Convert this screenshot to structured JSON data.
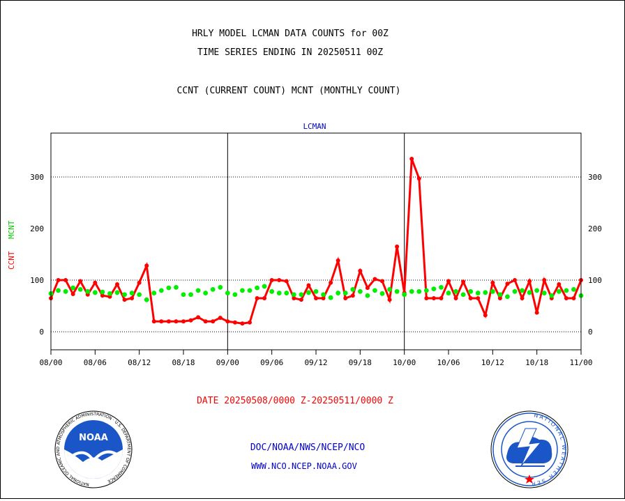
{
  "header": {
    "title_line1": "HRLY MODEL LCMAN DATA COUNTS for 00Z",
    "title_line2": "TIME SERIES ENDING IN 20250511 00Z",
    "subtitle": "CCNT (CURRENT COUNT) MCNT (MONTHLY COUNT)"
  },
  "footer": {
    "date_range": "DATE 20250508/0000 Z-20250511/0000 Z",
    "org_line": "DOC/NOAA/NWS/NCEP/NCO",
    "url_line": "WWW.NCO.NCEP.NOAA.GOV",
    "noaa_logo_text": "NOAA",
    "noaa_ring_text": "NATIONAL OCEANIC AND ATMOSPHERIC ADMINISTRATION · U.S. DEPARTMENT OF COMMERCE",
    "nws_ring_text": "NATIONAL WEATHER SERVICE"
  },
  "colors": {
    "ccnt": "#ff0000",
    "mcnt": "#00ee00",
    "plot_label": "#0000cc",
    "grid": "#000000"
  },
  "chart_data": {
    "type": "line",
    "title": "LCMAN",
    "ylabel_left": [
      "CCNT",
      "MCNT"
    ],
    "x_tick_labels": [
      "08/00",
      "08/06",
      "08/12",
      "08/18",
      "09/00",
      "09/06",
      "09/12",
      "09/18",
      "10/00",
      "10/06",
      "10/12",
      "10/18",
      "11/00"
    ],
    "x_range_hours": [
      0,
      72
    ],
    "ylim": [
      -35,
      385
    ],
    "y_ticks": [
      0,
      100,
      200,
      300
    ],
    "y_gridlines": [
      0,
      100,
      300
    ],
    "grid": true,
    "series": [
      {
        "name": "CCNT",
        "x": [
          0,
          1,
          2,
          3,
          4,
          5,
          6,
          7,
          8,
          9,
          10,
          11,
          12,
          13,
          14,
          15,
          16,
          17,
          18,
          19,
          20,
          21,
          22,
          23,
          24,
          25,
          26,
          27,
          28,
          29,
          30,
          31,
          32,
          33,
          34,
          35,
          36,
          37,
          38,
          39,
          40,
          41,
          42,
          43,
          44,
          45,
          46,
          47,
          48,
          49,
          50,
          51,
          52,
          53,
          54,
          55,
          56,
          57,
          58,
          59,
          60,
          61,
          62,
          63,
          64,
          65,
          66,
          67,
          68,
          69,
          70,
          71,
          72
        ],
        "values": [
          65,
          100,
          100,
          73,
          98,
          72,
          95,
          70,
          68,
          92,
          62,
          65,
          95,
          128,
          20,
          20,
          20,
          20,
          20,
          22,
          28,
          20,
          20,
          27,
          20,
          18,
          16,
          18,
          65,
          65,
          100,
          100,
          98,
          65,
          62,
          90,
          65,
          65,
          95,
          138,
          65,
          70,
          118,
          85,
          102,
          98,
          62,
          165,
          75,
          335,
          297,
          65,
          65,
          65,
          98,
          65,
          97,
          65,
          65,
          32,
          95,
          65,
          93,
          100,
          65,
          98,
          37,
          100,
          65,
          92,
          65,
          65,
          100
        ]
      },
      {
        "name": "MCNT",
        "x": [
          0,
          1,
          2,
          3,
          4,
          5,
          6,
          7,
          8,
          9,
          10,
          11,
          12,
          13,
          14,
          15,
          16,
          17,
          18,
          19,
          20,
          21,
          22,
          23,
          24,
          25,
          26,
          27,
          28,
          29,
          30,
          31,
          32,
          33,
          34,
          35,
          36,
          37,
          38,
          39,
          40,
          41,
          42,
          43,
          44,
          45,
          46,
          47,
          48,
          49,
          50,
          51,
          52,
          53,
          54,
          55,
          56,
          57,
          58,
          59,
          60,
          61,
          62,
          63,
          64,
          65,
          66,
          67,
          68,
          69,
          70,
          71,
          72
        ],
        "values": [
          74,
          80,
          78,
          85,
          82,
          78,
          76,
          77,
          74,
          76,
          72,
          75,
          72,
          62,
          75,
          80,
          85,
          86,
          72,
          72,
          80,
          75,
          82,
          86,
          75,
          72,
          80,
          80,
          85,
          88,
          78,
          75,
          75,
          72,
          72,
          76,
          78,
          72,
          66,
          75,
          75,
          82,
          78,
          70,
          80,
          74,
          82,
          78,
          72,
          78,
          78,
          80,
          83,
          86,
          75,
          78,
          72,
          78,
          75,
          76,
          78,
          72,
          68,
          78,
          80,
          76,
          80,
          75,
          70,
          78,
          80,
          82,
          70
        ]
      }
    ]
  }
}
